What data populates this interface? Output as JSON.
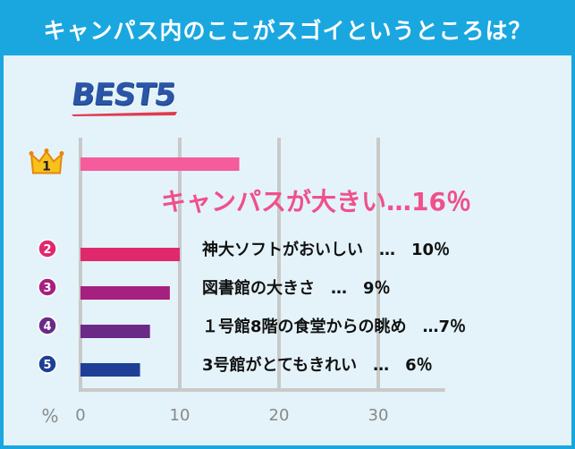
{
  "header": {
    "title": "キャンパス内のここがスゴイというところは？"
  },
  "badge": {
    "text": "BEST5"
  },
  "chart_data": {
    "type": "bar",
    "orientation": "horizontal",
    "xlim": [
      0,
      36
    ],
    "ticks": [
      0,
      10,
      20,
      30
    ],
    "tick_labels": [
      "0",
      "10",
      "20",
      "30"
    ],
    "unit_label": "%",
    "bars": [
      {
        "rank": "1",
        "label": "キャンパスが大きい…16％",
        "value": 16,
        "color": "#f45c9b"
      },
      {
        "rank": "2",
        "label": "神大ソフトがおいしい　…　10％",
        "value": 10,
        "color": "#e0286d"
      },
      {
        "rank": "3",
        "label": "図書館の大きさ　…　9％",
        "value": 9,
        "color": "#a6207f"
      },
      {
        "rank": "4",
        "label": "１号館8階の食堂からの眺め　…7％",
        "value": 7,
        "color": "#6a2a86"
      },
      {
        "rank": "5",
        "label": "3号館がとてもきれい　…　6％",
        "value": 6,
        "color": "#1f3f96"
      }
    ]
  },
  "colors": {
    "header_bg": "#1aa7df",
    "page_bg": "#e3f3f9",
    "grid": "#c9c9c9",
    "top_label": "#f0508c"
  }
}
